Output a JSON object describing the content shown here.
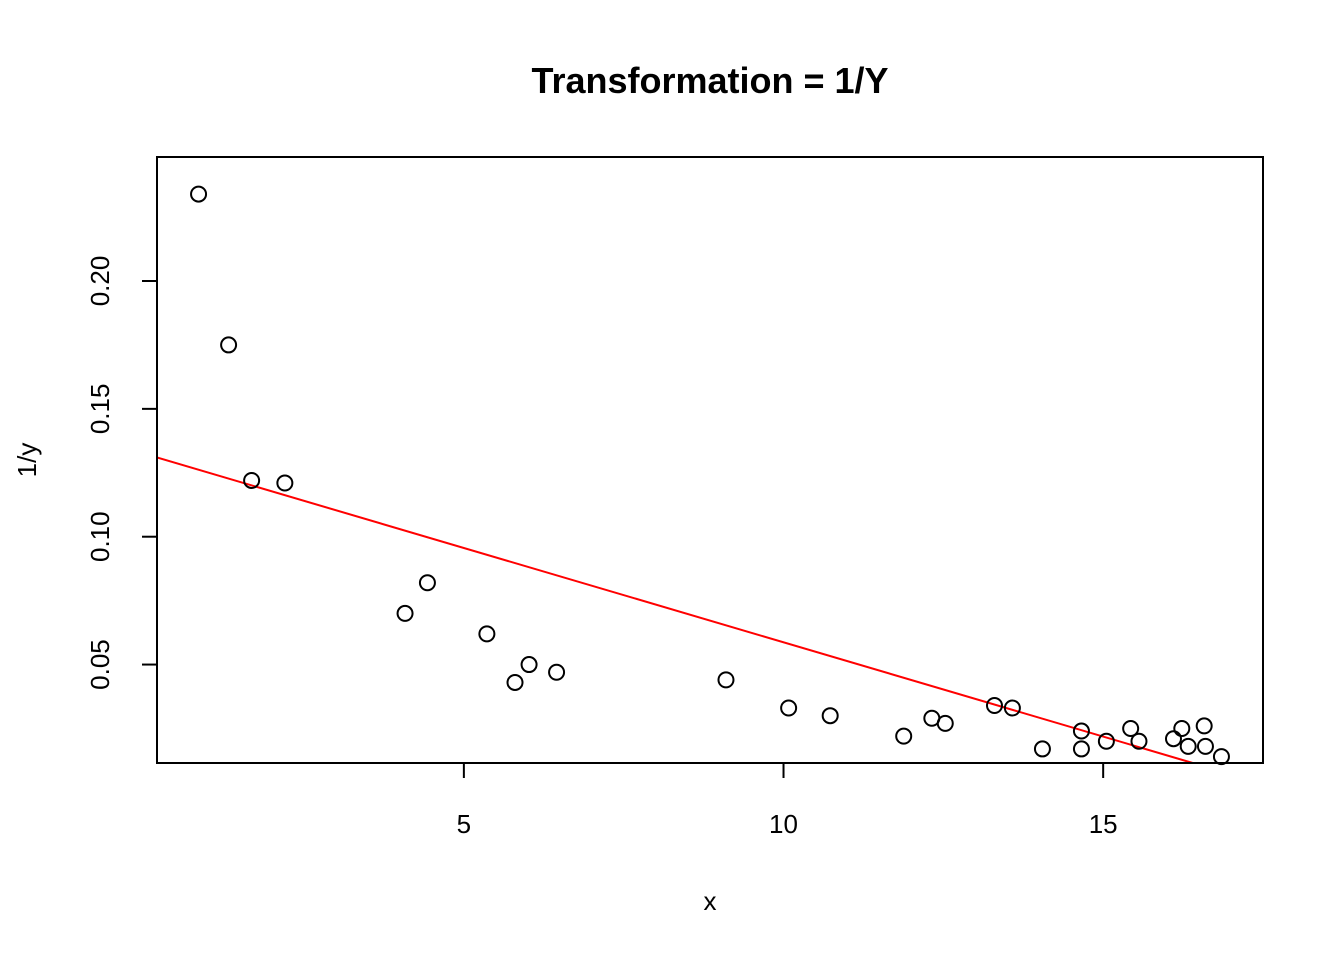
{
  "chart_data": {
    "type": "scatter",
    "title": "Transformation = 1/Y",
    "xlabel": "x",
    "ylabel": "1/y",
    "xlim": [
      0.2,
      17.5
    ],
    "ylim": [
      0.0115,
      0.2485
    ],
    "x_ticks": [
      5,
      10,
      15
    ],
    "x_tick_labels": [
      "5",
      "10",
      "15"
    ],
    "y_ticks": [
      0.05,
      0.1,
      0.15,
      0.2
    ],
    "y_tick_labels": [
      "0.05",
      "0.10",
      "0.15",
      "0.20"
    ],
    "grid": false,
    "point_style": "open-circle",
    "points": [
      {
        "x": 0.85,
        "y": 0.234
      },
      {
        "x": 1.32,
        "y": 0.175
      },
      {
        "x": 1.68,
        "y": 0.122
      },
      {
        "x": 2.2,
        "y": 0.121
      },
      {
        "x": 4.08,
        "y": 0.07
      },
      {
        "x": 4.43,
        "y": 0.082
      },
      {
        "x": 5.36,
        "y": 0.062
      },
      {
        "x": 5.8,
        "y": 0.043
      },
      {
        "x": 6.02,
        "y": 0.05
      },
      {
        "x": 6.45,
        "y": 0.047
      },
      {
        "x": 9.1,
        "y": 0.044
      },
      {
        "x": 10.08,
        "y": 0.033
      },
      {
        "x": 10.73,
        "y": 0.03
      },
      {
        "x": 11.88,
        "y": 0.022
      },
      {
        "x": 12.32,
        "y": 0.029
      },
      {
        "x": 12.53,
        "y": 0.027
      },
      {
        "x": 13.3,
        "y": 0.034
      },
      {
        "x": 13.58,
        "y": 0.033
      },
      {
        "x": 14.05,
        "y": 0.017
      },
      {
        "x": 14.66,
        "y": 0.024
      },
      {
        "x": 14.66,
        "y": 0.017
      },
      {
        "x": 15.05,
        "y": 0.02
      },
      {
        "x": 15.43,
        "y": 0.025
      },
      {
        "x": 15.56,
        "y": 0.02
      },
      {
        "x": 16.1,
        "y": 0.021
      },
      {
        "x": 16.23,
        "y": 0.025
      },
      {
        "x": 16.33,
        "y": 0.018
      },
      {
        "x": 16.58,
        "y": 0.026
      },
      {
        "x": 16.6,
        "y": 0.018
      },
      {
        "x": 16.85,
        "y": 0.014
      }
    ],
    "fit_line": {
      "color": "#ff0000",
      "x0": 0.2,
      "y0": 0.131,
      "x1": 16.4,
      "y1": 0.0115
    },
    "point_color": "#000000"
  }
}
